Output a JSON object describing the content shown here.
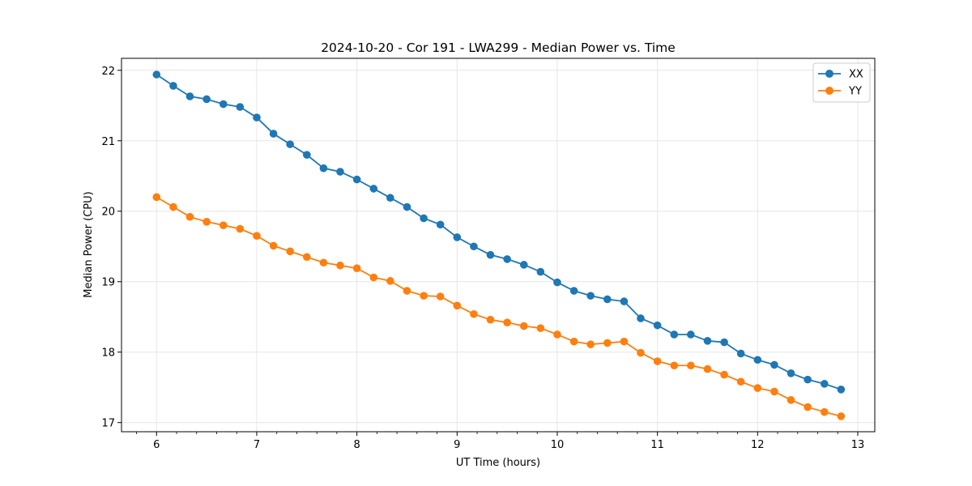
{
  "chart_data": {
    "type": "line",
    "title": "2024-10-20 - Cor 191 - LWA299 - Median Power vs. Time",
    "xlabel": "UT Time (hours)",
    "ylabel": "Median Power (CPU)",
    "xlim": [
      5.65,
      13.17
    ],
    "ylim": [
      16.87,
      22.17
    ],
    "xticks": [
      6,
      7,
      8,
      9,
      10,
      11,
      12,
      13
    ],
    "yticks": [
      17,
      18,
      19,
      20,
      21,
      22
    ],
    "x_minor_step": 0.2,
    "grid": true,
    "legend_position": "top-right",
    "x": [
      6.0,
      6.167,
      6.333,
      6.5,
      6.667,
      6.833,
      7.0,
      7.167,
      7.333,
      7.5,
      7.667,
      7.833,
      8.0,
      8.167,
      8.333,
      8.5,
      8.667,
      8.833,
      9.0,
      9.167,
      9.333,
      9.5,
      9.667,
      9.833,
      10.0,
      10.167,
      10.333,
      10.5,
      10.667,
      10.833,
      11.0,
      11.167,
      11.333,
      11.5,
      11.667,
      11.833,
      12.0,
      12.167,
      12.333,
      12.5,
      12.667,
      12.833
    ],
    "series": [
      {
        "name": "XX",
        "color": "#1f77b4",
        "values": [
          21.94,
          21.78,
          21.63,
          21.59,
          21.52,
          21.48,
          21.33,
          21.1,
          20.95,
          20.8,
          20.61,
          20.56,
          20.45,
          20.32,
          20.19,
          20.06,
          19.9,
          19.81,
          19.63,
          19.5,
          19.38,
          19.32,
          19.24,
          19.14,
          18.99,
          18.87,
          18.8,
          18.75,
          18.72,
          18.48,
          18.38,
          18.25,
          18.25,
          18.16,
          18.14,
          17.98,
          17.89,
          17.82,
          17.7,
          17.61,
          17.55,
          17.47
        ]
      },
      {
        "name": "YY",
        "color": "#ff7f0e",
        "values": [
          20.2,
          20.06,
          19.92,
          19.85,
          19.8,
          19.75,
          19.65,
          19.51,
          19.43,
          19.35,
          19.27,
          19.23,
          19.19,
          19.06,
          19.01,
          18.87,
          18.8,
          18.79,
          18.66,
          18.54,
          18.46,
          18.42,
          18.37,
          18.34,
          18.25,
          18.15,
          18.11,
          18.13,
          18.15,
          17.99,
          17.87,
          17.81,
          17.81,
          17.76,
          17.68,
          17.58,
          17.49,
          17.44,
          17.32,
          17.22,
          17.15,
          17.09
        ]
      }
    ]
  }
}
